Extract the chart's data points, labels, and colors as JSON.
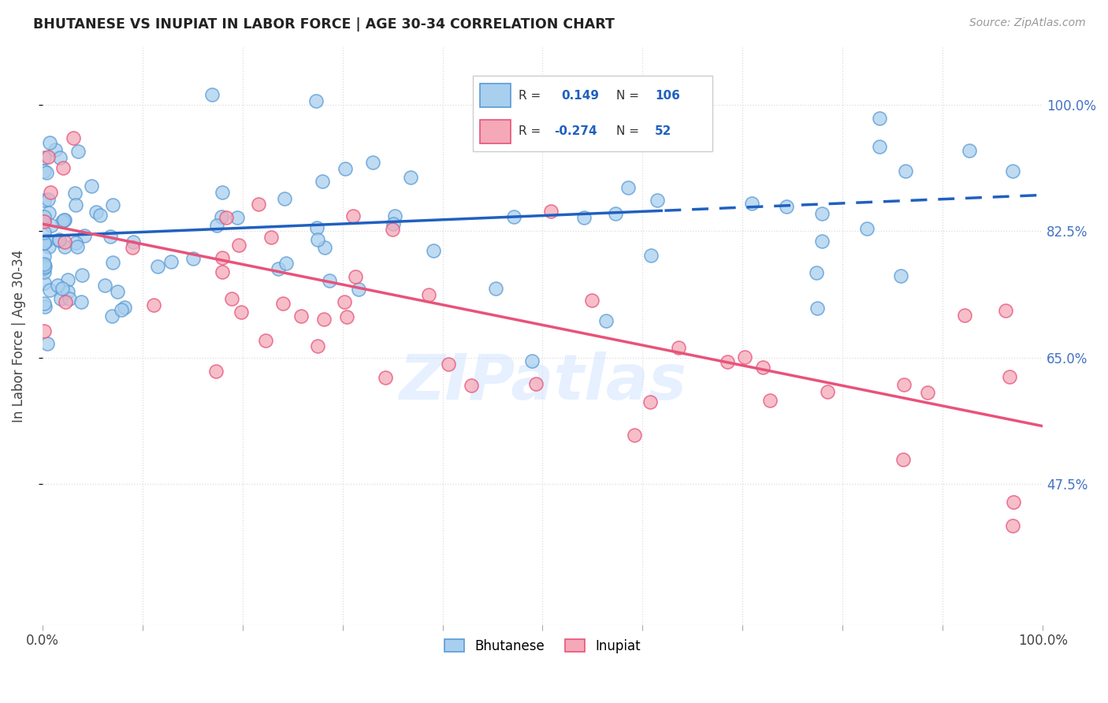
{
  "title": "BHUTANESE VS INUPIAT IN LABOR FORCE | AGE 30-34 CORRELATION CHART",
  "source_text": "Source: ZipAtlas.com",
  "ylabel": "In Labor Force | Age 30-34",
  "watermark": "ZIPatlas",
  "xlim": [
    0.0,
    1.0
  ],
  "ylim": [
    0.28,
    1.08
  ],
  "blue_R": 0.149,
  "blue_N": 106,
  "pink_R": -0.274,
  "pink_N": 52,
  "blue_color": "#A8CFEE",
  "pink_color": "#F4A8B8",
  "blue_edge_color": "#5B9BD5",
  "pink_edge_color": "#E8537A",
  "blue_line_color": "#2060C0",
  "pink_line_color": "#E8537A",
  "legend_label_blue": "Bhutanese",
  "legend_label_pink": "Inupiat",
  "ytick_positions": [
    0.475,
    0.65,
    0.825,
    1.0
  ],
  "yticklabels_right": [
    "47.5%",
    "65.0%",
    "82.5%",
    "100.0%"
  ],
  "background_color": "#FFFFFF",
  "grid_color": "#DDDDDD",
  "blue_trend_solid_end": 0.62,
  "blue_trend_start_y": 0.818,
  "blue_trend_end_y": 0.875,
  "pink_trend_start_y": 0.835,
  "pink_trend_end_y": 0.555
}
